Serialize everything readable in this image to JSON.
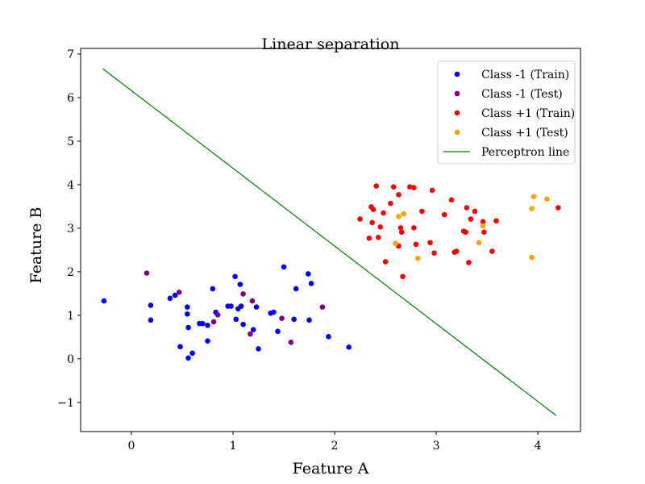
{
  "chart_data": {
    "type": "scatter",
    "title": "Linear separation",
    "xlabel": "Feature A",
    "ylabel": "Feature B",
    "xlim": [
      -0.5,
      4.42
    ],
    "ylim": [
      -1.67,
      7.13
    ],
    "xticks": [
      0,
      1,
      2,
      3,
      4
    ],
    "yticks": [
      -1,
      0,
      1,
      2,
      3,
      4,
      5,
      6,
      7
    ],
    "xtick_labels": [
      "0",
      "1",
      "2",
      "3",
      "4"
    ],
    "ytick_labels": [
      "−1",
      "0",
      "1",
      "2",
      "3",
      "4",
      "5",
      "6",
      "7"
    ],
    "grid": false,
    "legend_position": "top-right",
    "series": [
      {
        "name": "Class -1 (Train)",
        "kind": "scatter",
        "color": "#0000ff",
        "points": [
          [
            -0.27,
            1.33
          ],
          [
            0.19,
            1.23
          ],
          [
            0.19,
            0.89
          ],
          [
            0.38,
            1.39
          ],
          [
            0.43,
            1.46
          ],
          [
            0.48,
            0.28
          ],
          [
            0.55,
            1.19
          ],
          [
            0.55,
            1.03
          ],
          [
            0.56,
            0.72
          ],
          [
            0.56,
            0.02
          ],
          [
            0.6,
            0.13
          ],
          [
            0.67,
            0.81
          ],
          [
            0.7,
            0.81
          ],
          [
            0.75,
            0.77
          ],
          [
            0.75,
            0.41
          ],
          [
            0.8,
            1.61
          ],
          [
            0.83,
            1.07
          ],
          [
            0.95,
            1.21
          ],
          [
            0.98,
            1.21
          ],
          [
            1.02,
            1.89
          ],
          [
            1.03,
            0.91
          ],
          [
            1.05,
            1.15
          ],
          [
            1.07,
            1.71
          ],
          [
            1.08,
            1.21
          ],
          [
            1.1,
            0.79
          ],
          [
            1.2,
            0.67
          ],
          [
            1.23,
            1.19
          ],
          [
            1.25,
            0.23
          ],
          [
            1.37,
            1.05
          ],
          [
            1.4,
            1.07
          ],
          [
            1.44,
            0.63
          ],
          [
            1.5,
            2.11
          ],
          [
            1.6,
            0.91
          ],
          [
            1.62,
            1.61
          ],
          [
            1.74,
            1.95
          ],
          [
            1.75,
            0.89
          ],
          [
            1.77,
            1.73
          ],
          [
            1.94,
            0.51
          ],
          [
            2.14,
            0.27
          ]
        ]
      },
      {
        "name": "Class -1 (Test)",
        "kind": "scatter",
        "color": "#800080",
        "points": [
          [
            0.15,
            1.97
          ],
          [
            0.47,
            1.53
          ],
          [
            0.81,
            0.85
          ],
          [
            0.85,
            1.01
          ],
          [
            1.1,
            1.49
          ],
          [
            1.17,
            0.57
          ],
          [
            1.19,
            1.33
          ],
          [
            1.48,
            0.93
          ],
          [
            1.57,
            0.38
          ],
          [
            1.88,
            1.19
          ]
        ]
      },
      {
        "name": "Class +1 (Train)",
        "kind": "scatter",
        "color": "#ff0000",
        "points": [
          [
            2.25,
            3.21
          ],
          [
            2.34,
            2.77
          ],
          [
            2.36,
            3.49
          ],
          [
            2.37,
            3.13
          ],
          [
            2.38,
            3.43
          ],
          [
            2.41,
            3.97
          ],
          [
            2.43,
            2.79
          ],
          [
            2.45,
            3.03
          ],
          [
            2.48,
            3.35
          ],
          [
            2.5,
            2.23
          ],
          [
            2.55,
            3.57
          ],
          [
            2.58,
            3.95
          ],
          [
            2.6,
            2.65
          ],
          [
            2.63,
            3.77
          ],
          [
            2.63,
            2.59
          ],
          [
            2.65,
            3.01
          ],
          [
            2.66,
            2.91
          ],
          [
            2.67,
            1.89
          ],
          [
            2.74,
            3.95
          ],
          [
            2.78,
            3.93
          ],
          [
            2.78,
            3.01
          ],
          [
            2.8,
            2.63
          ],
          [
            2.86,
            3.39
          ],
          [
            2.94,
            2.67
          ],
          [
            2.96,
            3.87
          ],
          [
            2.98,
            2.43
          ],
          [
            3.08,
            3.31
          ],
          [
            3.15,
            3.65
          ],
          [
            3.18,
            2.45
          ],
          [
            3.2,
            2.47
          ],
          [
            3.27,
            2.93
          ],
          [
            3.29,
            2.91
          ],
          [
            3.3,
            3.47
          ],
          [
            3.32,
            2.21
          ],
          [
            3.34,
            3.21
          ],
          [
            3.38,
            3.39
          ],
          [
            3.46,
            3.15
          ],
          [
            3.47,
            2.91
          ],
          [
            3.55,
            2.47
          ],
          [
            3.59,
            3.17
          ],
          [
            4.2,
            3.47
          ]
        ]
      },
      {
        "name": "Class +1 (Test)",
        "kind": "scatter",
        "color": "#ffa500",
        "points": [
          [
            2.6,
            2.65
          ],
          [
            2.63,
            3.27
          ],
          [
            2.68,
            3.33
          ],
          [
            2.82,
            2.31
          ],
          [
            3.42,
            2.67
          ],
          [
            3.46,
            3.05
          ],
          [
            3.94,
            3.45
          ],
          [
            3.94,
            2.33
          ],
          [
            3.96,
            3.73
          ],
          [
            4.09,
            3.67
          ]
        ]
      },
      {
        "name": "Perceptron line",
        "kind": "line",
        "color": "#008000",
        "points": [
          [
            -0.28,
            6.66
          ],
          [
            4.18,
            -1.3
          ]
        ]
      }
    ]
  }
}
